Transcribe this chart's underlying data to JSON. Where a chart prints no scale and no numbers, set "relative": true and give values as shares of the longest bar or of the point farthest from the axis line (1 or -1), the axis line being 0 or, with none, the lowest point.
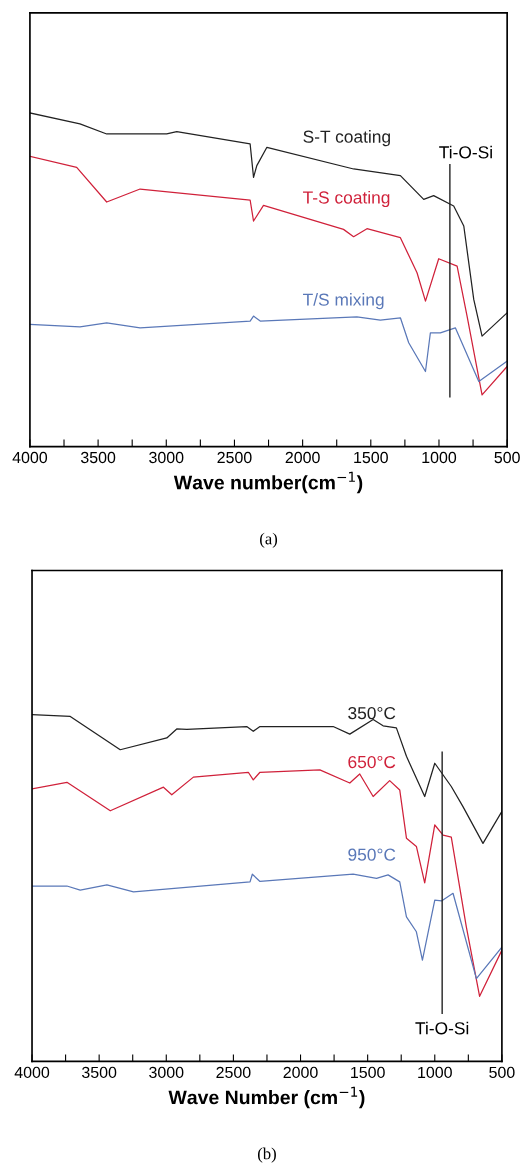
{
  "chart_data": [
    {
      "type": "line",
      "relative": true,
      "xlabel": "Wave number(cm$^{−1}$)",
      "xlim": [
        4000,
        500
      ],
      "tick_labels": "x",
      "grid": false,
      "legend": false,
      "xticks": [
        4000,
        {
          "value": 3750,
          "label": null
        },
        3500,
        {
          "value": 3250,
          "label": null
        },
        3000,
        {
          "value": 2750,
          "label": null
        },
        2500,
        {
          "value": 2250,
          "label": null
        },
        2000,
        {
          "value": 1750,
          "label": null
        },
        1500,
        {
          "value": 1250,
          "label": null
        },
        1000,
        {
          "value": 750,
          "label": null
        },
        500
      ],
      "ref_lines": [
        {
          "axis": "x",
          "value": 920,
          "label": "Ti-O-Si",
          "color": "#222222"
        }
      ],
      "annotations": [
        "(a)"
      ],
      "series": [
        {
          "name": "S-T coating",
          "color": "#222222",
          "x": [
            4000,
            3633,
            3437,
            2997,
            2923,
            2385,
            2360,
            2336,
            2262,
            1626,
            1283,
            1112,
            1039,
            892,
            818,
            745,
            684,
            500
          ],
          "values": [
            1.0,
            0.967,
            0.937,
            0.937,
            0.944,
            0.907,
            0.807,
            0.842,
            0.897,
            0.832,
            0.812,
            0.741,
            0.752,
            0.721,
            0.661,
            0.441,
            0.331,
            0.401
          ]
        },
        {
          "name": "T-S coating",
          "color": "#d0213a",
          "x": [
            4000,
            3657,
            3437,
            3192,
            2385,
            2360,
            2287,
            1700,
            1626,
            1528,
            1283,
            1161,
            1099,
            1002,
            867,
            794,
            684,
            500
          ],
          "values": [
            0.87,
            0.837,
            0.733,
            0.772,
            0.739,
            0.676,
            0.723,
            0.651,
            0.629,
            0.653,
            0.626,
            0.521,
            0.436,
            0.563,
            0.541,
            0.391,
            0.155,
            0.24
          ]
        },
        {
          "name": "T/S mixing",
          "color": "#5a78b8",
          "x": [
            4000,
            3633,
            3437,
            3192,
            2385,
            2360,
            2311,
            1602,
            1430,
            1283,
            1222,
            1099,
            1063,
            990,
            880,
            708,
            500
          ],
          "values": [
            0.366,
            0.359,
            0.371,
            0.356,
            0.376,
            0.391,
            0.376,
            0.389,
            0.379,
            0.386,
            0.311,
            0.225,
            0.341,
            0.341,
            0.356,
            0.195,
            0.256
          ]
        }
      ]
    },
    {
      "type": "line",
      "relative": true,
      "xlabel": "Wave Number (cm$^{−1}$)",
      "xlim": [
        4000,
        500
      ],
      "tick_labels": "x",
      "grid": false,
      "legend": false,
      "xticks": [
        4000,
        {
          "value": 3750,
          "label": null
        },
        3500,
        {
          "value": 3250,
          "label": null
        },
        3000,
        {
          "value": 2750,
          "label": null
        },
        2500,
        {
          "value": 2250,
          "label": null
        },
        2000,
        {
          "value": 1750,
          "label": null
        },
        1500,
        {
          "value": 1250,
          "label": null
        },
        1000,
        {
          "value": 750,
          "label": null
        },
        500
      ],
      "ref_lines": [
        {
          "axis": "x",
          "value": 945,
          "label": "Ti-O-Si",
          "color": "#222222"
        }
      ],
      "annotations": [
        "(b)"
      ],
      "series": [
        {
          "name": "350°C",
          "color": "#222222",
          "x": [
            4000,
            3715,
            3343,
            2996,
            2922,
            2847,
            2401,
            2352,
            2302,
            1757,
            1633,
            1459,
            1385,
            1286,
            1211,
            1075,
            1000,
            877,
            790,
            641,
            500
          ],
          "values": [
            1.0,
            0.995,
            0.899,
            0.933,
            0.959,
            0.958,
            0.966,
            0.952,
            0.966,
            0.966,
            0.944,
            0.986,
            0.968,
            0.962,
            0.88,
            0.764,
            0.86,
            0.793,
            0.735,
            0.629,
            0.721
          ]
        },
        {
          "name": "650°C",
          "color": "#d0213a",
          "x": [
            4000,
            3740,
            3417,
            3021,
            2959,
            2798,
            2389,
            2352,
            2302,
            1856,
            1633,
            1559,
            1459,
            1336,
            1261,
            1211,
            1137,
            1075,
            1000,
            938,
            877,
            765,
            666,
            500
          ],
          "values": [
            0.786,
            0.805,
            0.723,
            0.791,
            0.769,
            0.82,
            0.834,
            0.812,
            0.834,
            0.841,
            0.803,
            0.829,
            0.764,
            0.81,
            0.783,
            0.644,
            0.62,
            0.515,
            0.682,
            0.653,
            0.647,
            0.388,
            0.188,
            0.321
          ]
        },
        {
          "name": "950°C",
          "color": "#5a78b8",
          "x": [
            4000,
            3740,
            3641,
            3442,
            3244,
            2376,
            2359,
            2302,
            1608,
            1434,
            1348,
            1261,
            1211,
            1137,
            1092,
            1000,
            950,
            864,
            690,
            500
          ],
          "values": [
            0.506,
            0.506,
            0.494,
            0.509,
            0.489,
            0.518,
            0.54,
            0.519,
            0.54,
            0.528,
            0.538,
            0.518,
            0.417,
            0.374,
            0.292,
            0.465,
            0.463,
            0.485,
            0.239,
            0.33
          ]
        }
      ]
    }
  ]
}
